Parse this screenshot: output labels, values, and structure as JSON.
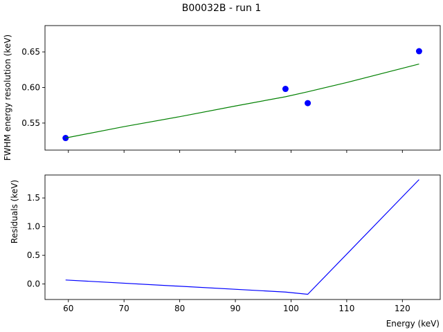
{
  "chart_data": [
    {
      "type": "scatter",
      "title": "B00032B - run 1",
      "xlabel": "",
      "ylabel": "FWHM energy resolution (keV)",
      "xlim": [
        55.8,
        126.8
      ],
      "ylim": [
        0.512,
        0.687
      ],
      "xticks": [
        60,
        70,
        80,
        90,
        100,
        110,
        120
      ],
      "yticks": [
        0.55,
        0.6,
        0.65
      ],
      "ytick_labels": [
        "0.55",
        "0.60",
        "0.65"
      ],
      "grid": false,
      "series": [
        {
          "kind": "points",
          "color": "#0000ff",
          "x": [
            59.5,
            99.0,
            103.0,
            123.0
          ],
          "y": [
            0.529,
            0.598,
            0.578,
            0.651
          ]
        },
        {
          "kind": "line",
          "color": "#008000",
          "x": [
            59.5,
            70,
            80,
            90,
            99.0,
            103.0,
            110,
            123.0
          ],
          "y": [
            0.529,
            0.545,
            0.559,
            0.574,
            0.587,
            0.594,
            0.607,
            0.633
          ]
        }
      ]
    },
    {
      "type": "line",
      "xlabel": "Energy (keV)",
      "ylabel": "Residuals (keV)",
      "xlim": [
        55.8,
        126.8
      ],
      "ylim": [
        -0.27,
        1.9
      ],
      "xticks": [
        60,
        70,
        80,
        90,
        100,
        110,
        120
      ],
      "yticks": [
        0.0,
        0.5,
        1.0,
        1.5
      ],
      "ytick_labels": [
        "0.0",
        "0.5",
        "1.0",
        "1.5"
      ],
      "grid": false,
      "series": [
        {
          "kind": "line",
          "color": "#0000ff",
          "x": [
            59.5,
            99.0,
            103.0,
            123.0
          ],
          "y": [
            0.07,
            -0.14,
            -0.18,
            1.82
          ]
        }
      ]
    }
  ]
}
